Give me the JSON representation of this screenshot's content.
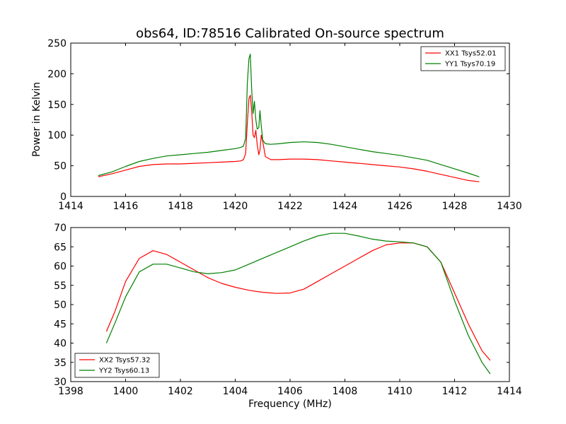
{
  "chart_data": [
    {
      "type": "line",
      "title": "obs64, ID:78516 Calibrated On-source spectrum",
      "xlabel": "",
      "ylabel": "Power in Kelvin",
      "xlim": [
        1414,
        1430
      ],
      "ylim": [
        0,
        250
      ],
      "xticks": [
        "1414",
        "1416",
        "1418",
        "1420",
        "1422",
        "1424",
        "1426",
        "1428",
        "1430"
      ],
      "yticks": [
        "0",
        "50",
        "100",
        "150",
        "200",
        "250"
      ],
      "legend_position": "top-right",
      "grid": false,
      "series": [
        {
          "name": "XX1 Tsys52.01",
          "color": "#ff0000",
          "x": [
            1415.0,
            1415.5,
            1416.0,
            1416.5,
            1417.0,
            1417.5,
            1418.0,
            1418.5,
            1419.0,
            1419.5,
            1420.0,
            1420.2,
            1420.3,
            1420.38,
            1420.44,
            1420.5,
            1420.55,
            1420.6,
            1420.65,
            1420.7,
            1420.75,
            1420.8,
            1420.86,
            1420.9,
            1420.95,
            1421.0,
            1421.1,
            1421.3,
            1421.6,
            1422.0,
            1422.5,
            1423.0,
            1423.5,
            1424.0,
            1424.5,
            1425.0,
            1425.5,
            1426.0,
            1426.5,
            1427.0,
            1427.5,
            1428.0,
            1428.5,
            1428.9
          ],
          "values": [
            32,
            37,
            43,
            49,
            52,
            53,
            53,
            54,
            55,
            56,
            57,
            58,
            60,
            70,
            120,
            160,
            165,
            140,
            100,
            96,
            108,
            85,
            68,
            75,
            100,
            90,
            65,
            60,
            60,
            61,
            61,
            60,
            58,
            56,
            54,
            52,
            50,
            48,
            45,
            41,
            36,
            31,
            26,
            24
          ]
        },
        {
          "name": "YY1 Tsys70.19",
          "color": "#008000",
          "x": [
            1415.0,
            1415.5,
            1416.0,
            1416.5,
            1417.0,
            1417.5,
            1418.0,
            1418.5,
            1419.0,
            1419.5,
            1420.0,
            1420.2,
            1420.3,
            1420.38,
            1420.44,
            1420.5,
            1420.55,
            1420.6,
            1420.65,
            1420.7,
            1420.75,
            1420.8,
            1420.86,
            1420.9,
            1420.95,
            1421.0,
            1421.1,
            1421.3,
            1421.6,
            1422.0,
            1422.5,
            1423.0,
            1423.5,
            1424.0,
            1424.5,
            1425.0,
            1425.5,
            1426.0,
            1426.5,
            1427.0,
            1427.5,
            1428.0,
            1428.5,
            1428.9
          ],
          "values": [
            34,
            40,
            49,
            57,
            62,
            66,
            68,
            70,
            72,
            75,
            78,
            80,
            82,
            95,
            185,
            225,
            232,
            175,
            135,
            155,
            125,
            110,
            112,
            140,
            115,
            92,
            86,
            85,
            86,
            88,
            89,
            88,
            85,
            81,
            77,
            73,
            70,
            67,
            63,
            59,
            52,
            45,
            38,
            32
          ]
        }
      ]
    },
    {
      "type": "line",
      "title": "",
      "xlabel": "Frequency (MHz)",
      "ylabel": "",
      "xlim": [
        1398,
        1414
      ],
      "ylim": [
        30,
        70
      ],
      "xticks": [
        "1398",
        "1400",
        "1402",
        "1404",
        "1406",
        "1408",
        "1410",
        "1412",
        "1414"
      ],
      "yticks": [
        "30",
        "35",
        "40",
        "45",
        "50",
        "55",
        "60",
        "65",
        "70"
      ],
      "legend_position": "bottom-left",
      "grid": false,
      "series": [
        {
          "name": "XX2 Tsys57.32",
          "color": "#ff0000",
          "x": [
            1399.3,
            1399.6,
            1400.0,
            1400.5,
            1401.0,
            1401.5,
            1402.0,
            1402.5,
            1403.0,
            1403.5,
            1404.0,
            1404.5,
            1405.0,
            1405.5,
            1406.0,
            1406.5,
            1407.0,
            1407.5,
            1408.0,
            1408.5,
            1409.0,
            1409.5,
            1410.0,
            1410.5,
            1411.0,
            1411.5,
            1412.0,
            1412.5,
            1413.0,
            1413.3
          ],
          "values": [
            43,
            48,
            56,
            62,
            64,
            63,
            61,
            59,
            57,
            55.5,
            54.5,
            53.7,
            53.2,
            52.9,
            53,
            54,
            56,
            58,
            60,
            62,
            64,
            65.5,
            66,
            66,
            65,
            61,
            53,
            45,
            38,
            35.5
          ]
        },
        {
          "name": "YY2 Tsys60.13",
          "color": "#008000",
          "x": [
            1399.3,
            1399.6,
            1400.0,
            1400.5,
            1401.0,
            1401.5,
            1402.0,
            1402.5,
            1403.0,
            1403.5,
            1404.0,
            1404.5,
            1405.0,
            1405.5,
            1406.0,
            1406.5,
            1407.0,
            1407.5,
            1408.0,
            1408.5,
            1409.0,
            1409.5,
            1410.0,
            1410.5,
            1411.0,
            1411.5,
            1412.0,
            1412.5,
            1413.0,
            1413.3
          ],
          "values": [
            40,
            45,
            52,
            58.5,
            60.5,
            60.5,
            59.5,
            58.5,
            58,
            58.3,
            59,
            60.5,
            62,
            63.5,
            65,
            66.5,
            67.8,
            68.5,
            68.5,
            67.8,
            67,
            66.5,
            66.3,
            66,
            65,
            61,
            51,
            42,
            35,
            32
          ]
        }
      ]
    }
  ]
}
